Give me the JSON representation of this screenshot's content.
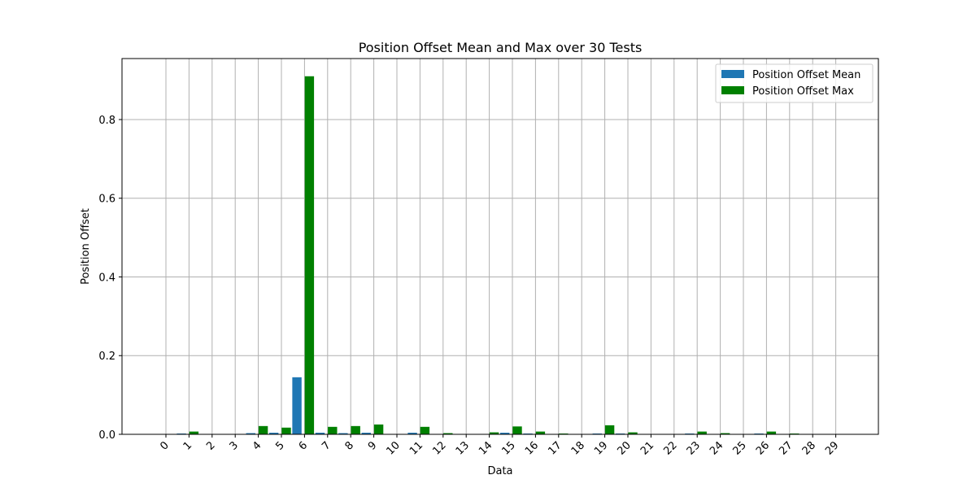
{
  "chart_data": {
    "type": "bar",
    "title": "Position Offset Mean and Max over 30 Tests",
    "xlabel": "Data",
    "ylabel": "Position Offset",
    "categories": [
      "0",
      "1",
      "2",
      "3",
      "4",
      "5",
      "6",
      "7",
      "8",
      "9",
      "10",
      "11",
      "12",
      "13",
      "14",
      "15",
      "16",
      "17",
      "18",
      "19",
      "20",
      "21",
      "22",
      "23",
      "24",
      "25",
      "26",
      "27",
      "28",
      "29"
    ],
    "ylim": [
      0,
      0.955
    ],
    "yticks": [
      0.0,
      0.2,
      0.4,
      0.6,
      0.8
    ],
    "ytick_labels": [
      "0.0",
      "0.2",
      "0.4",
      "0.6",
      "0.8"
    ],
    "grid": true,
    "legend_position": "top-right",
    "series": [
      {
        "name": "Position Offset Mean",
        "color": "#1f77b4",
        "values": [
          0.0,
          0.002,
          0.0,
          0.0,
          0.003,
          0.004,
          0.145,
          0.004,
          0.003,
          0.004,
          0.0,
          0.004,
          0.001,
          0.0,
          0.001,
          0.004,
          0.002,
          0.001,
          0.0,
          0.002,
          0.002,
          0.0,
          0.0,
          0.002,
          0.001,
          0.0,
          0.002,
          0.001,
          0.0,
          0.0
        ]
      },
      {
        "name": "Position Offset Max",
        "color": "#008000",
        "values": [
          0.0,
          0.007,
          0.0,
          0.0,
          0.021,
          0.017,
          0.91,
          0.019,
          0.021,
          0.025,
          0.0,
          0.019,
          0.003,
          0.0,
          0.005,
          0.02,
          0.007,
          0.002,
          0.0,
          0.023,
          0.005,
          0.0,
          0.0,
          0.007,
          0.003,
          0.0,
          0.007,
          0.002,
          0.0,
          0.0
        ]
      }
    ]
  }
}
